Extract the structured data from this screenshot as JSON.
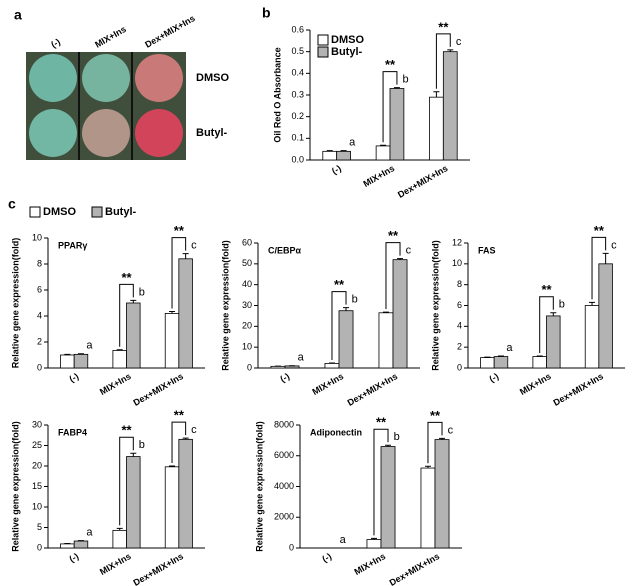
{
  "panel_labels": [
    "a",
    "b",
    "c"
  ],
  "panel_a": {
    "columns": [
      "(-)",
      "MIX+Ins",
      "Dex+MIX+Ins"
    ],
    "rows": [
      "DMSO",
      "Butyl-"
    ]
  },
  "chart_data": [
    {
      "type": "bar",
      "ylabel": "Oil Red O Absorbance",
      "categories": [
        "(-)",
        "MIX+Ins",
        "Dex+MIX+Ins"
      ],
      "series": [
        {
          "name": "DMSO",
          "color": "#ffffff",
          "values": [
            0.04,
            0.065,
            0.29
          ],
          "errors": [
            0.003,
            0.003,
            0.025
          ]
        },
        {
          "name": "Butyl-",
          "color": "#b3b3b3",
          "values": [
            0.04,
            0.33,
            0.5
          ],
          "errors": [
            0.003,
            0.004,
            0.008
          ]
        }
      ],
      "ylim": [
        0,
        0.6
      ],
      "yticks": [
        {
          "value": 0,
          "label": "0.0"
        },
        0.1,
        0.2,
        0.3,
        0.4,
        0.5,
        0.6
      ],
      "letters": [
        "a",
        "b",
        "c"
      ],
      "significance": [
        null,
        "**",
        "**"
      ]
    },
    {
      "type": "bar",
      "label": "PPARγ",
      "ylabel": "Relative gene expression(fold)",
      "categories": [
        "(-)",
        "MIX+Ins",
        "Dex+MIX+Ins"
      ],
      "series": [
        {
          "name": "DMSO",
          "color": "#ffffff",
          "values": [
            1.0,
            1.35,
            4.2
          ],
          "errors": [
            0.05,
            0.05,
            0.15
          ]
        },
        {
          "name": "Butyl-",
          "color": "#b3b3b3",
          "values": [
            1.05,
            5.0,
            8.4
          ],
          "errors": [
            0.05,
            0.2,
            0.4
          ]
        }
      ],
      "ylim": [
        0,
        10
      ],
      "yticks": [
        0,
        2,
        4,
        6,
        8,
        10
      ],
      "letters": [
        "a",
        "b",
        "c"
      ],
      "significance": [
        null,
        "**",
        "**"
      ]
    },
    {
      "type": "bar",
      "label": "C/EBPα",
      "ylabel": "Relative gene expression(fold)",
      "categories": [
        "(-)",
        "MIX+Ins",
        "Dex+MIX+Ins"
      ],
      "series": [
        {
          "color": "#ffffff",
          "values": [
            0.8,
            2.2,
            26.5
          ],
          "errors": [
            0.1,
            0.2,
            0.3
          ]
        },
        {
          "color": "#b3b3b3",
          "values": [
            1.0,
            27.5,
            52
          ],
          "errors": [
            0.1,
            1.5,
            0.5
          ]
        }
      ],
      "ylim": [
        0,
        60
      ],
      "yticks": [
        0,
        10,
        20,
        30,
        40,
        50,
        60
      ],
      "letters": [
        "a",
        "b",
        "c"
      ],
      "significance": [
        null,
        "**",
        "**"
      ]
    },
    {
      "type": "bar",
      "label": "FAS",
      "ylabel": "Relative gene expression(fold)",
      "categories": [
        "(-)",
        "MIX+Ins",
        "Dex+MIX+Ins"
      ],
      "series": [
        {
          "color": "#ffffff",
          "values": [
            1.0,
            1.1,
            6.0
          ],
          "errors": [
            0.05,
            0.05,
            0.3
          ]
        },
        {
          "color": "#b3b3b3",
          "values": [
            1.1,
            5.0,
            10.0
          ],
          "errors": [
            0.05,
            0.3,
            1.0
          ]
        }
      ],
      "ylim": [
        0,
        12
      ],
      "yticks": [
        0,
        2,
        4,
        6,
        8,
        10,
        12
      ],
      "letters": [
        "a",
        "b",
        "c"
      ],
      "significance": [
        null,
        "**",
        "**"
      ]
    },
    {
      "type": "bar",
      "label": "FABP4",
      "ylabel": "Relative gene expression(fold)",
      "categories": [
        "(-)",
        "MIX+Ins",
        "Dex+MIX+Ins"
      ],
      "series": [
        {
          "color": "#ffffff",
          "values": [
            1.0,
            4.3,
            19.8
          ],
          "errors": [
            0.1,
            0.5,
            0.2
          ]
        },
        {
          "color": "#b3b3b3",
          "values": [
            1.7,
            22.3,
            26.5
          ],
          "errors": [
            0.1,
            0.8,
            0.3
          ]
        }
      ],
      "ylim": [
        0,
        30
      ],
      "yticks": [
        0,
        5,
        10,
        15,
        20,
        25,
        30
      ],
      "letters": [
        "a",
        "b",
        "c"
      ],
      "significance": [
        null,
        "**",
        "**"
      ]
    },
    {
      "type": "bar",
      "label": "Adiponectin",
      "ylabel": "Relative gene expression(fold)",
      "categories": [
        "(-)",
        "MIX+Ins",
        "Dex+MIX+Ins"
      ],
      "series": [
        {
          "color": "#ffffff",
          "values": [
            0,
            550,
            5200
          ],
          "errors": [
            0,
            80,
            120
          ]
        },
        {
          "color": "#b3b3b3",
          "values": [
            0,
            6600,
            7050
          ],
          "errors": [
            0,
            80,
            80
          ]
        }
      ],
      "ylim": [
        0,
        8000
      ],
      "yticks": [
        0,
        2000,
        4000,
        6000,
        8000
      ],
      "letters": [
        "a",
        "b",
        "c"
      ],
      "significance": [
        null,
        "**",
        "**"
      ]
    }
  ]
}
